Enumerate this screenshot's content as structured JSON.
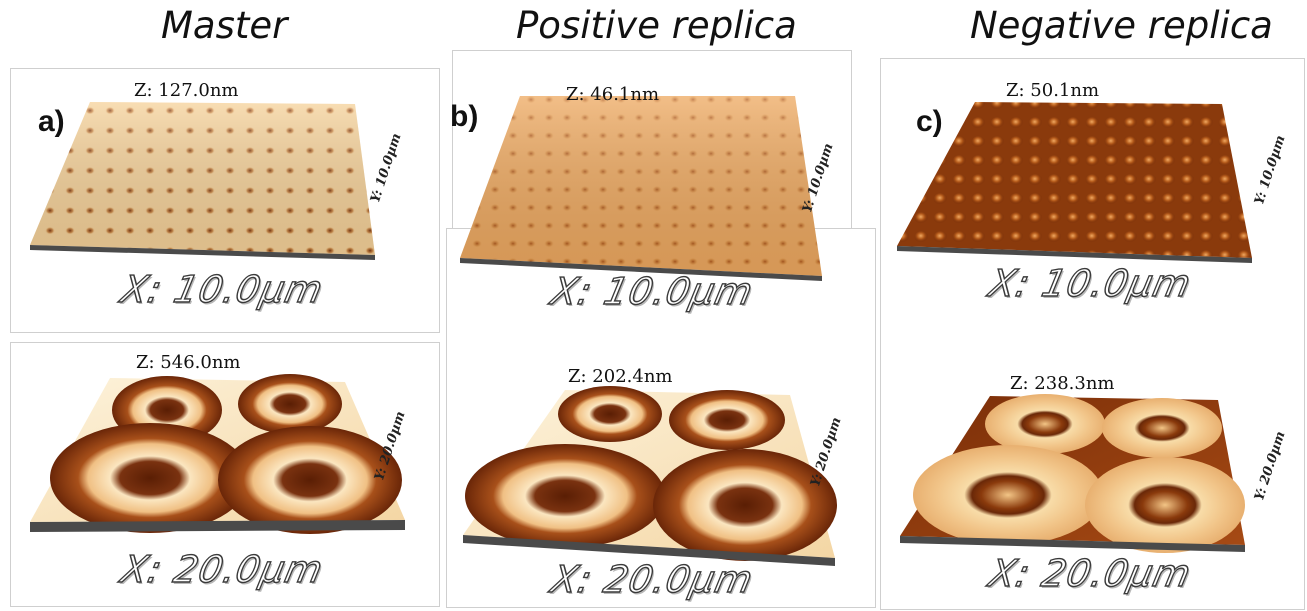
{
  "columns": [
    {
      "title": "Master"
    },
    {
      "title": "Positive replica"
    },
    {
      "title": "Negative replica"
    }
  ],
  "panels": [
    {
      "letter": "a)",
      "z": "Z: 127.0nm",
      "x": "X: 10.0µm",
      "y": "Y: 10.0µm"
    },
    {
      "letter": "b)",
      "z": "Z: 46.1nm",
      "x": "X: 10.0µm",
      "y": "Y: 10.0µm"
    },
    {
      "letter": "c)",
      "z": "Z: 50.1nm",
      "x": "X: 10.0µm",
      "y": "Y: 10.0µm"
    },
    {
      "letter": "",
      "z": "Z: 546.0nm",
      "x": "X: 20.0µm",
      "y": "Y: 20.0µm"
    },
    {
      "letter": "",
      "z": "Z: 202.4nm",
      "x": "X: 20.0µm",
      "y": "Y: 20.0µm"
    },
    {
      "letter": "",
      "z": "Z: 238.3nm",
      "x": "X: 20.0µm",
      "y": "Y: 20.0µm"
    }
  ],
  "colors": {
    "light_surface": "#f3c37e",
    "dark_surface": "#8a3a0c",
    "cream": "#fbe6c0",
    "deep_brown": "#5a1e04"
  }
}
